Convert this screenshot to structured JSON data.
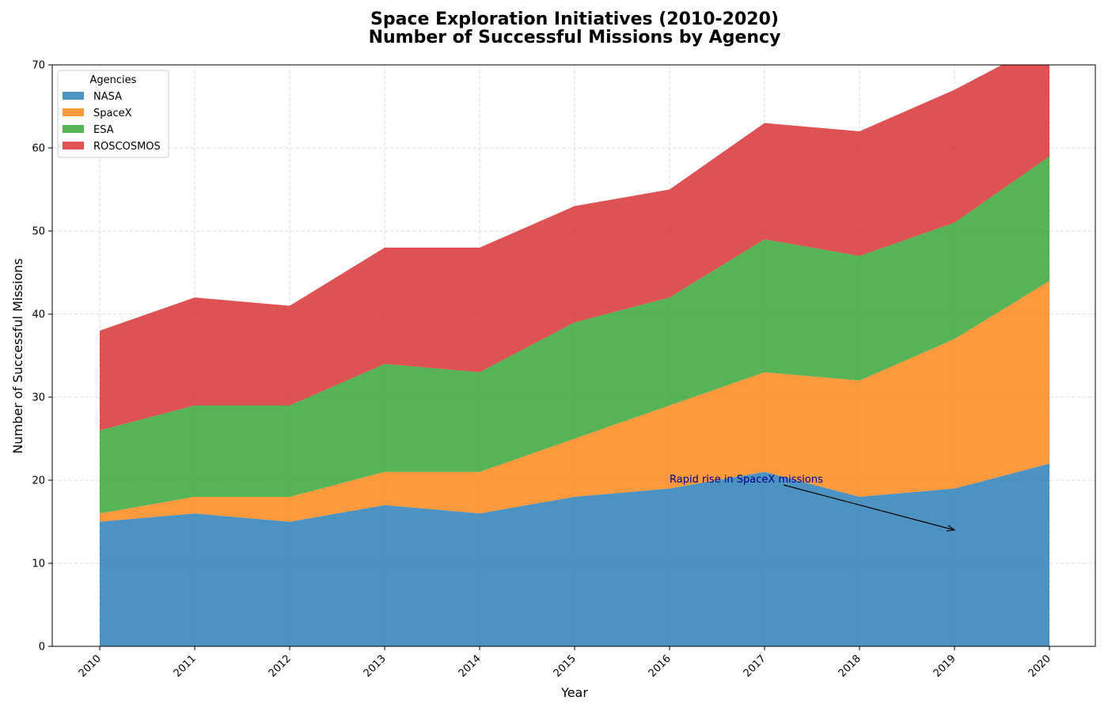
{
  "chart_data": {
    "type": "area",
    "stacked": true,
    "title": "Space Exploration Initiatives (2010-2020)",
    "subtitle": "Number of Successful Missions by Agency",
    "xlabel": "Year",
    "ylabel": "Number of Successful Missions",
    "categories": [
      "2010",
      "2011",
      "2012",
      "2013",
      "2014",
      "2015",
      "2016",
      "2017",
      "2018",
      "2019",
      "2020"
    ],
    "ylim": [
      0,
      70
    ],
    "yticks": [
      0,
      10,
      20,
      30,
      40,
      50,
      60,
      70
    ],
    "grid": true,
    "legend": {
      "title": "Agencies",
      "placement": "top-left"
    },
    "series": [
      {
        "name": "NASA",
        "color": "#1f77b4",
        "values": [
          15,
          16,
          15,
          17,
          16,
          18,
          19,
          21,
          18,
          19,
          22
        ]
      },
      {
        "name": "SpaceX",
        "color": "#ff7f0e",
        "values": [
          1,
          2,
          3,
          4,
          5,
          7,
          10,
          12,
          14,
          18,
          22
        ]
      },
      {
        "name": "ESA",
        "color": "#2ca02c",
        "values": [
          10,
          11,
          11,
          13,
          12,
          14,
          13,
          16,
          15,
          14,
          15
        ]
      },
      {
        "name": "ROSCOSMOS",
        "color": "#d62728",
        "values": [
          12,
          13,
          12,
          14,
          15,
          14,
          13,
          14,
          15,
          16,
          14
        ]
      }
    ],
    "annotation": {
      "text": "Rapid rise in SpaceX missions",
      "text_color": "#00008b",
      "text_at": {
        "year": "2016",
        "value": 20
      },
      "arrow_to": {
        "year": "2019",
        "value": 14
      }
    }
  }
}
